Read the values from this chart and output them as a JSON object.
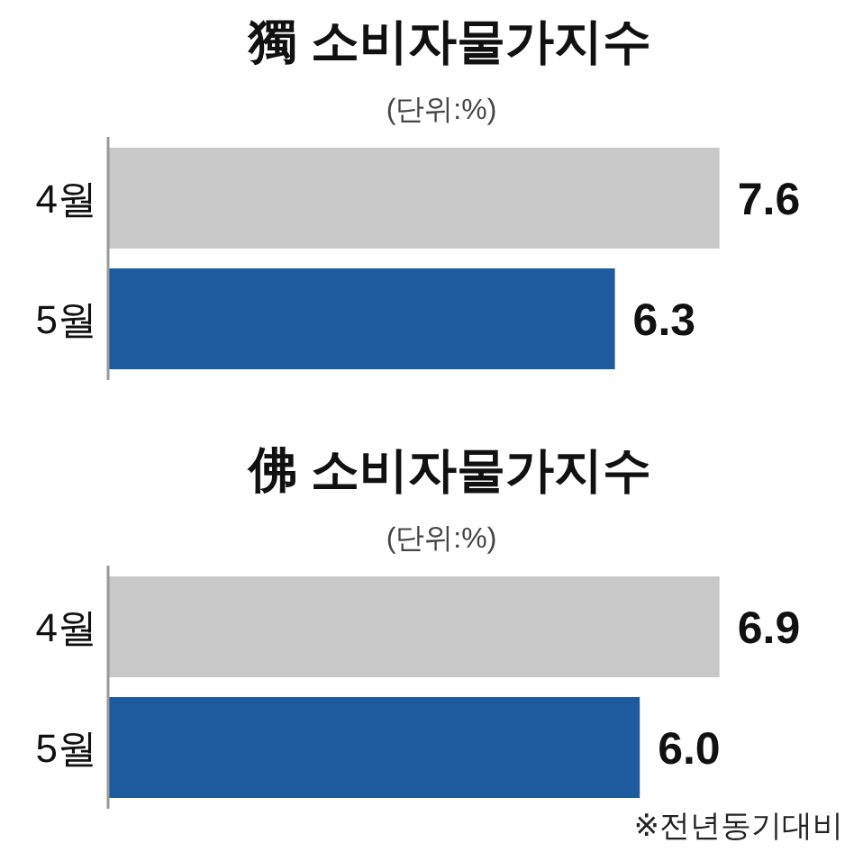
{
  "chart_data": [
    {
      "type": "bar",
      "orientation": "horizontal",
      "title": "獨 소비자물가지수",
      "subtitle": "(단위:%)",
      "categories": [
        "4월",
        "5월"
      ],
      "values": [
        7.6,
        6.3
      ],
      "value_labels": [
        "7.6",
        "6.3"
      ],
      "colors": [
        "#c8c8c8",
        "#1d5a9e"
      ]
    },
    {
      "type": "bar",
      "orientation": "horizontal",
      "title": "佛 소비자물가지수",
      "subtitle": "(단위:%)",
      "categories": [
        "4월",
        "5월"
      ],
      "values": [
        6.9,
        6.0
      ],
      "value_labels": [
        "6.9",
        "6.0"
      ],
      "colors": [
        "#c8c8c8",
        "#1d5a9e"
      ],
      "annotations": [
        "※전년동기대비"
      ]
    }
  ]
}
